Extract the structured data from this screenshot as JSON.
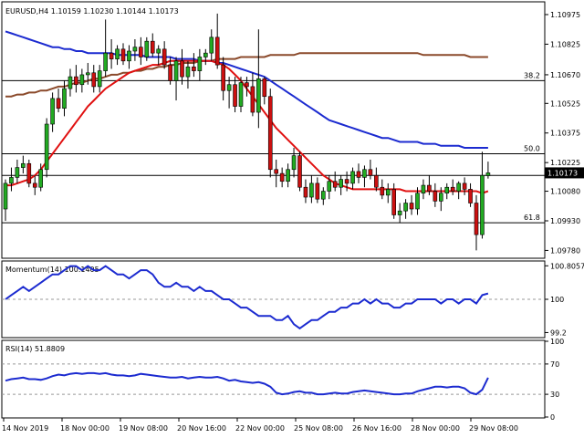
{
  "chart_data": {
    "type": "candlestick",
    "symbol_header": "EURUSD,H4  1.10159 1.10230 1.10144 1.10173",
    "price_axis": {
      "ticks": [
        "1.10975",
        "1.10825",
        "1.10670",
        "1.10525",
        "1.10375",
        "1.10225",
        "1.10080",
        "1.09930",
        "1.09780"
      ],
      "tick_values": [
        1.10975,
        1.10825,
        1.1067,
        1.10525,
        1.10375,
        1.10225,
        1.1008,
        1.0993,
        1.0978
      ],
      "ylim": [
        1.09745,
        1.11035
      ],
      "current_price_label": "1.10173",
      "current_price": 1.10173
    },
    "fib_levels": [
      {
        "label": "38.2",
        "value": 1.1064
      },
      {
        "label": "50.0",
        "value": 1.1027
      },
      {
        "label": "61.8",
        "value": 1.0992
      }
    ],
    "hline_extra": {
      "value": 1.1016
    },
    "time_axis": [
      "14 Nov 2019",
      "18 Nov 00:00",
      "19 Nov 08:00",
      "20 Nov 16:00",
      "22 Nov 00:00",
      "25 Nov 08:00",
      "26 Nov 16:00",
      "28 Nov 00:00",
      "29 Nov 08:00"
    ],
    "candles": [
      [
        1.0999,
        1.1014,
        1.0993,
        1.1012
      ],
      [
        1.1012,
        1.102,
        1.1008,
        1.1015
      ],
      [
        1.1015,
        1.1024,
        1.1012,
        1.102
      ],
      [
        1.102,
        1.1026,
        1.1017,
        1.1022
      ],
      [
        1.1022,
        1.1024,
        1.101,
        1.1012
      ],
      [
        1.1012,
        1.1016,
        1.1006,
        1.101
      ],
      [
        1.101,
        1.1022,
        1.1008,
        1.1019
      ],
      [
        1.1019,
        1.1045,
        1.1015,
        1.1042
      ],
      [
        1.1042,
        1.1058,
        1.1038,
        1.1055
      ],
      [
        1.1055,
        1.106,
        1.1048,
        1.105
      ],
      [
        1.105,
        1.1064,
        1.1046,
        1.106
      ],
      [
        1.106,
        1.107,
        1.1056,
        1.1066
      ],
      [
        1.1066,
        1.1072,
        1.1058,
        1.1062
      ],
      [
        1.1062,
        1.107,
        1.1058,
        1.1067
      ],
      [
        1.1067,
        1.1073,
        1.1062,
        1.1068
      ],
      [
        1.1068,
        1.1072,
        1.1058,
        1.1061
      ],
      [
        1.1061,
        1.1072,
        1.1058,
        1.1069
      ],
      [
        1.1069,
        1.1095,
        1.1066,
        1.1078
      ],
      [
        1.1078,
        1.1085,
        1.107,
        1.1075
      ],
      [
        1.1075,
        1.1082,
        1.1072,
        1.108
      ],
      [
        1.108,
        1.1083,
        1.1072,
        1.1074
      ],
      [
        1.1074,
        1.1082,
        1.107,
        1.1079
      ],
      [
        1.1079,
        1.1085,
        1.1074,
        1.1081
      ],
      [
        1.1081,
        1.1086,
        1.1072,
        1.1076
      ],
      [
        1.1076,
        1.1086,
        1.1074,
        1.1084
      ],
      [
        1.1084,
        1.1088,
        1.1076,
        1.1078
      ],
      [
        1.1078,
        1.1082,
        1.1072,
        1.108
      ],
      [
        1.108,
        1.1084,
        1.107,
        1.1072
      ],
      [
        1.1072,
        1.1076,
        1.1062,
        1.1064
      ],
      [
        1.1064,
        1.1076,
        1.1054,
        1.1074
      ],
      [
        1.1074,
        1.108,
        1.1062,
        1.1066
      ],
      [
        1.1066,
        1.1074,
        1.106,
        1.1071
      ],
      [
        1.1071,
        1.1078,
        1.1066,
        1.1069
      ],
      [
        1.1069,
        1.108,
        1.1064,
        1.1076
      ],
      [
        1.1076,
        1.108,
        1.1072,
        1.1078
      ],
      [
        1.1078,
        1.109,
        1.1074,
        1.1086
      ],
      [
        1.1086,
        1.1098,
        1.107,
        1.1072
      ],
      [
        1.1072,
        1.1076,
        1.1054,
        1.1059
      ],
      [
        1.1059,
        1.1066,
        1.105,
        1.1062
      ],
      [
        1.1062,
        1.1066,
        1.1048,
        1.1051
      ],
      [
        1.1051,
        1.1066,
        1.1048,
        1.1063
      ],
      [
        1.1063,
        1.1066,
        1.1056,
        1.1061
      ],
      [
        1.1061,
        1.1068,
        1.1046,
        1.1048
      ],
      [
        1.1048,
        1.109,
        1.104,
        1.1065
      ],
      [
        1.1065,
        1.1066,
        1.1052,
        1.1056
      ],
      [
        1.1056,
        1.106,
        1.1015,
        1.1019
      ],
      [
        1.1019,
        1.1024,
        1.101,
        1.1017
      ],
      [
        1.1017,
        1.102,
        1.101,
        1.1013
      ],
      [
        1.1013,
        1.1022,
        1.101,
        1.1019
      ],
      [
        1.1019,
        1.103,
        1.1015,
        1.1026
      ],
      [
        1.1026,
        1.1028,
        1.1008,
        1.101
      ],
      [
        1.101,
        1.1014,
        1.1002,
        1.1005
      ],
      [
        1.1005,
        1.1016,
        1.1002,
        1.1012
      ],
      [
        1.1012,
        1.1015,
        1.1002,
        1.1004
      ],
      [
        1.1004,
        1.101,
        1.1001,
        1.1008
      ],
      [
        1.1008,
        1.1016,
        1.1004,
        1.1013
      ],
      [
        1.1013,
        1.1018,
        1.1008,
        1.101
      ],
      [
        1.101,
        1.1016,
        1.1006,
        1.1014
      ],
      [
        1.1014,
        1.1018,
        1.1008,
        1.1012
      ],
      [
        1.1012,
        1.102,
        1.1009,
        1.1018
      ],
      [
        1.1018,
        1.1022,
        1.1012,
        1.1015
      ],
      [
        1.1015,
        1.1021,
        1.101,
        1.1019
      ],
      [
        1.1019,
        1.1024,
        1.1014,
        1.1016
      ],
      [
        1.1016,
        1.102,
        1.1008,
        1.101
      ],
      [
        1.101,
        1.1014,
        1.1004,
        1.1006
      ],
      [
        1.1006,
        1.1012,
        1.1002,
        1.1009
      ],
      [
        1.1009,
        1.1012,
        1.0994,
        1.0996
      ],
      [
        1.0996,
        1.1002,
        1.0992,
        1.0998
      ],
      [
        1.0998,
        1.1004,
        1.0994,
        1.1002
      ],
      [
        1.1002,
        1.1006,
        1.0996,
        1.0999
      ],
      [
        1.0999,
        1.101,
        1.0996,
        1.1007
      ],
      [
        1.1007,
        1.1014,
        1.1004,
        1.1011
      ],
      [
        1.1011,
        1.1016,
        1.1006,
        1.1008
      ],
      [
        1.1008,
        1.1012,
        1.1,
        1.1003
      ],
      [
        1.1003,
        1.101,
        1.0998,
        1.1007
      ],
      [
        1.1007,
        1.1012,
        1.1004,
        1.101
      ],
      [
        1.101,
        1.1014,
        1.1006,
        1.1008
      ],
      [
        1.1008,
        1.1013,
        1.1004,
        1.1012
      ],
      [
        1.1012,
        1.1015,
        1.1006,
        1.1009
      ],
      [
        1.1009,
        1.1012,
        1.1,
        1.1002
      ],
      [
        1.1002,
        1.1006,
        1.0978,
        1.0986
      ],
      [
        1.0986,
        1.1028,
        1.0984,
        1.1016
      ],
      [
        1.10159,
        1.1023,
        1.10144,
        1.10173
      ]
    ],
    "sma_fast_color": "#e01010",
    "sma_mid_color": "#1c2bd0",
    "sma_slow_color": "#8b4a2b",
    "bull_color": "#22aa22",
    "bear_color": "#cc1010",
    "sma_fast": [
      1.1011,
      1.1011,
      1.1012,
      1.1013,
      1.1014,
      1.1016,
      1.1019,
      1.1023,
      1.1027,
      1.1031,
      1.1035,
      1.1039,
      1.1043,
      1.1047,
      1.1051,
      1.1054,
      1.1057,
      1.106,
      1.1062,
      1.1064,
      1.1066,
      1.1068,
      1.1069,
      1.107,
      1.1071,
      1.1072,
      1.1072,
      1.1073,
      1.1074,
      1.1074,
      1.1074,
      1.1074,
      1.1074,
      1.1074,
      1.1074,
      1.1074,
      1.1073,
      1.1072,
      1.107,
      1.1067,
      1.1064,
      1.106,
      1.1056,
      1.1052,
      1.1048,
      1.1044,
      1.104,
      1.1037,
      1.1034,
      1.1031,
      1.1028,
      1.1025,
      1.1022,
      1.1019,
      1.1016,
      1.1014,
      1.1012,
      1.1011,
      1.101,
      1.1009,
      1.1009,
      1.1009,
      1.1009,
      1.1009,
      1.1009,
      1.1009,
      1.1009,
      1.1009,
      1.1008,
      1.1008,
      1.1008,
      1.1008,
      1.1008,
      1.1008,
      1.1008,
      1.1008,
      1.1008,
      1.1008,
      1.1008,
      1.1008,
      1.1008,
      1.1007,
      1.1008
    ],
    "sma_mid": [
      1.1089,
      1.1088,
      1.1087,
      1.1086,
      1.1085,
      1.1084,
      1.1083,
      1.1082,
      1.1081,
      1.1081,
      1.108,
      1.108,
      1.1079,
      1.1079,
      1.1078,
      1.1078,
      1.1078,
      1.1078,
      1.1078,
      1.1077,
      1.1077,
      1.1077,
      1.1077,
      1.1077,
      1.1076,
      1.1076,
      1.1076,
      1.1076,
      1.1076,
      1.1075,
      1.1075,
      1.1075,
      1.1075,
      1.1074,
      1.1074,
      1.1074,
      1.1073,
      1.1073,
      1.1072,
      1.1071,
      1.107,
      1.1069,
      1.1068,
      1.1067,
      1.1066,
      1.1064,
      1.1062,
      1.106,
      1.1058,
      1.1056,
      1.1054,
      1.1052,
      1.105,
      1.1048,
      1.1046,
      1.1044,
      1.1043,
      1.1042,
      1.1041,
      1.104,
      1.1039,
      1.1038,
      1.1037,
      1.1036,
      1.1035,
      1.1035,
      1.1034,
      1.1033,
      1.1033,
      1.1033,
      1.1033,
      1.1032,
      1.1032,
      1.1032,
      1.1031,
      1.1031,
      1.1031,
      1.1031,
      1.103,
      1.103,
      1.103,
      1.103,
      1.103
    ],
    "sma_slow": [
      1.1056,
      1.1056,
      1.1057,
      1.1057,
      1.1058,
      1.1058,
      1.1059,
      1.1059,
      1.106,
      1.1061,
      1.1061,
      1.1062,
      1.1063,
      1.1063,
      1.1064,
      1.1065,
      1.1065,
      1.1066,
      1.1067,
      1.1067,
      1.1068,
      1.1068,
      1.1069,
      1.1069,
      1.107,
      1.107,
      1.1071,
      1.1071,
      1.1072,
      1.1072,
      1.1073,
      1.1073,
      1.1073,
      1.1074,
      1.1074,
      1.1074,
      1.1075,
      1.1075,
      1.1075,
      1.1075,
      1.1076,
      1.1076,
      1.1076,
      1.1076,
      1.1076,
      1.1077,
      1.1077,
      1.1077,
      1.1077,
      1.1077,
      1.1078,
      1.1078,
      1.1078,
      1.1078,
      1.1078,
      1.1078,
      1.1078,
      1.1078,
      1.1078,
      1.1078,
      1.1078,
      1.1078,
      1.1078,
      1.1078,
      1.1078,
      1.1078,
      1.1078,
      1.1078,
      1.1078,
      1.1078,
      1.1078,
      1.1077,
      1.1077,
      1.1077,
      1.1077,
      1.1077,
      1.1077,
      1.1077,
      1.1077,
      1.1076,
      1.1076,
      1.1076,
      1.1076
    ],
    "momentum": {
      "label": "Momentum(14) 100.1405",
      "ticks": [
        "100.8057",
        "100",
        "99.2"
      ],
      "tick_values": [
        100.8057,
        100,
        99.2
      ],
      "ylim": [
        99.1,
        100.9
      ],
      "color": "#1c2bd0",
      "values": [
        100.0,
        100.1,
        100.2,
        100.3,
        100.2,
        100.3,
        100.4,
        100.5,
        100.6,
        100.6,
        100.7,
        100.8,
        100.8,
        100.7,
        100.8,
        100.7,
        100.7,
        100.8,
        100.7,
        100.6,
        100.6,
        100.5,
        100.6,
        100.7,
        100.7,
        100.6,
        100.4,
        100.3,
        100.3,
        100.4,
        100.3,
        100.3,
        100.2,
        100.3,
        100.2,
        100.2,
        100.1,
        100.0,
        100.0,
        99.9,
        99.8,
        99.8,
        99.7,
        99.6,
        99.6,
        99.6,
        99.5,
        99.5,
        99.6,
        99.4,
        99.3,
        99.4,
        99.5,
        99.5,
        99.6,
        99.7,
        99.7,
        99.8,
        99.8,
        99.9,
        99.9,
        100.0,
        99.9,
        100.0,
        99.9,
        99.9,
        99.8,
        99.8,
        99.9,
        99.9,
        100.0,
        100.0,
        100.0,
        100.0,
        99.9,
        100.0,
        100.0,
        99.9,
        100.0,
        100.0,
        99.9,
        100.1,
        100.14
      ]
    },
    "rsi": {
      "label": "RSI(14) 51.8809",
      "ticks": [
        "100",
        "70",
        "30",
        "0"
      ],
      "tick_values": [
        100,
        70,
        30,
        0
      ],
      "ylim": [
        0,
        100
      ],
      "color": "#1c2bd0",
      "values": [
        48,
        50,
        51,
        52,
        50,
        50,
        49,
        51,
        54,
        56,
        55,
        57,
        58,
        57,
        58,
        58,
        57,
        58,
        56,
        55,
        55,
        54,
        55,
        57,
        56,
        55,
        54,
        53,
        52,
        52,
        53,
        51,
        52,
        53,
        52,
        52,
        53,
        51,
        48,
        49,
        47,
        46,
        45,
        46,
        44,
        40,
        32,
        30,
        31,
        33,
        34,
        32,
        32,
        30,
        30,
        31,
        32,
        31,
        31,
        33,
        34,
        35,
        34,
        33,
        32,
        31,
        30,
        30,
        31,
        31,
        34,
        36,
        38,
        40,
        40,
        39,
        40,
        40,
        38,
        32,
        30,
        36,
        51.88
      ]
    }
  }
}
